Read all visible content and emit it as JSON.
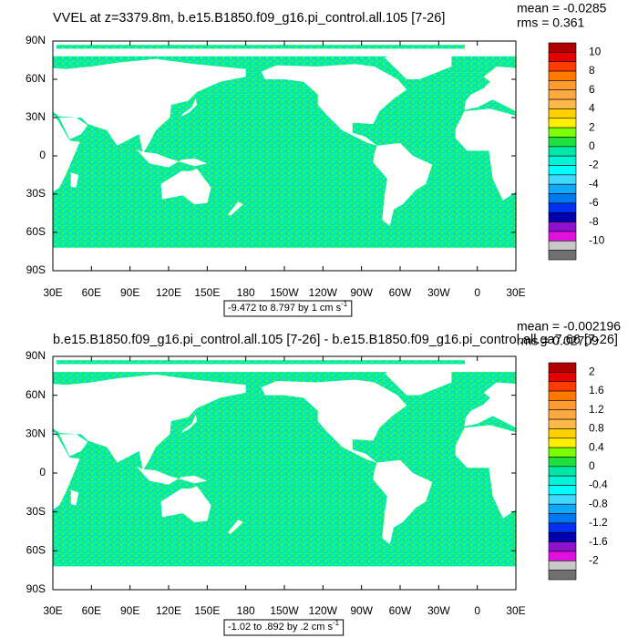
{
  "panels": [
    {
      "title": "VVEL at z=3379.8m, b.e15.B1850.f09_g16.pi_control.all.105 [7-26]",
      "mean": "mean = -0.0285",
      "rms": "rms = 0.361",
      "yticks": [
        "90N",
        "60N",
        "30N",
        "0",
        "30S",
        "60S",
        "90S"
      ],
      "xticks": [
        "30E",
        "60E",
        "90E",
        "120E",
        "150E",
        "180",
        "150W",
        "120W",
        "90W",
        "60W",
        "30W",
        "0",
        "30E"
      ],
      "info": "-9.472 to 8.797 by 1 cm s",
      "info_sup": "-1",
      "colorbar": {
        "levels": [
          10,
          8,
          6,
          4,
          2,
          0,
          -2,
          -4,
          -6,
          -8,
          -10
        ]
      }
    },
    {
      "title": "b.e15.B1850.f09_g16.pi_control.all.105 [7-26] - b.e15.B1850.f09_g16.pi_control.all.ga7.66 [7-26]",
      "mean": "mean = -0.002196",
      "rms": "rms = 0.02709",
      "yticks": [
        "90N",
        "60N",
        "30N",
        "0",
        "30S",
        "60S",
        "90S"
      ],
      "xticks": [
        "30E",
        "60E",
        "90E",
        "120E",
        "150E",
        "180",
        "150W",
        "120W",
        "90W",
        "60W",
        "30W",
        "0",
        "30E"
      ],
      "info": "-1.02 to .892 by .2 cm s",
      "info_sup": "-1",
      "colorbar": {
        "levels": [
          2,
          1.6,
          1.2,
          0.8,
          0.4,
          0,
          -0.4,
          -0.8,
          -1.2,
          -1.6,
          -2
        ]
      }
    }
  ],
  "colorbar_colors": [
    "#b00000",
    "#e60000",
    "#ff3c00",
    "#ff7800",
    "#ff9a30",
    "#ffaa40",
    "#ffb84a",
    "#ffd000",
    "#fff000",
    "#7cff00",
    "#20e040",
    "#00e8a8",
    "#00f4d8",
    "#00ffff",
    "#40d8ff",
    "#10a8f8",
    "#0078f0",
    "#0030f0",
    "#0000b0",
    "#9010d0",
    "#e010e0",
    "#c8c8c8",
    "#707070"
  ]
}
